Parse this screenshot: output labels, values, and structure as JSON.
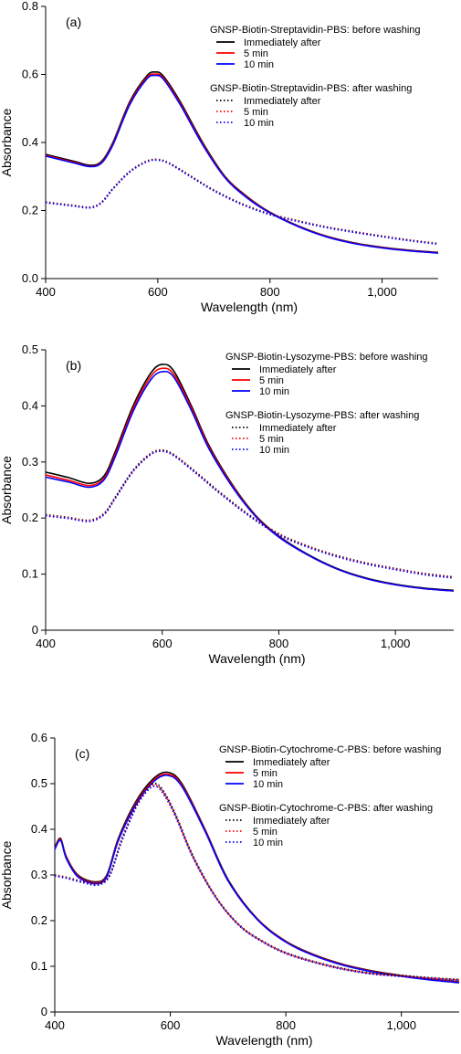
{
  "chart_data": [
    {
      "type": "line",
      "panel_label": "(a)",
      "xlabel": "Wavelength (nm)",
      "ylabel": "Absorbance",
      "xlim": [
        400,
        1100
      ],
      "ylim": [
        0,
        0.8
      ],
      "xticks": [
        400,
        600,
        800,
        1000
      ],
      "xtick_labels": [
        "400",
        "600",
        "800",
        "1,000"
      ],
      "yticks": [
        0,
        0.2,
        0.4,
        0.6,
        0.8
      ],
      "ytick_labels": [
        "0.0",
        "0.2",
        "0.4",
        "0.6",
        "0.8"
      ],
      "legend_groups": [
        {
          "title": "GNSP-Biotin-Streptavidin-PBS: before washing",
          "style": "solid"
        },
        {
          "title": "GNSP-Biotin-Streptavidin-PBS: after washing",
          "style": "dotted"
        }
      ],
      "series": [
        {
          "name": "Immediately after",
          "group": 0,
          "color": "#000000",
          "style": "solid",
          "x": [
            400,
            450,
            480,
            500,
            520,
            550,
            580,
            595,
            610,
            640,
            680,
            720,
            760,
            800,
            850,
            900,
            950,
            1000,
            1050,
            1100
          ],
          "y": [
            0.365,
            0.345,
            0.333,
            0.345,
            0.4,
            0.52,
            0.595,
            0.607,
            0.595,
            0.52,
            0.4,
            0.3,
            0.24,
            0.195,
            0.155,
            0.125,
            0.105,
            0.092,
            0.083,
            0.077
          ]
        },
        {
          "name": "5 min",
          "group": 0,
          "color": "#ff0000",
          "style": "solid",
          "x": [
            400,
            450,
            480,
            500,
            520,
            550,
            580,
            595,
            610,
            640,
            680,
            720,
            760,
            800,
            850,
            900,
            950,
            1000,
            1050,
            1100
          ],
          "y": [
            0.362,
            0.342,
            0.33,
            0.342,
            0.396,
            0.515,
            0.59,
            0.601,
            0.59,
            0.515,
            0.396,
            0.298,
            0.238,
            0.194,
            0.154,
            0.124,
            0.104,
            0.091,
            0.082,
            0.076
          ]
        },
        {
          "name": "10 min",
          "group": 0,
          "color": "#0000ff",
          "style": "solid",
          "x": [
            400,
            450,
            480,
            500,
            520,
            550,
            580,
            595,
            610,
            640,
            680,
            720,
            760,
            800,
            850,
            900,
            950,
            1000,
            1050,
            1100
          ],
          "y": [
            0.36,
            0.34,
            0.329,
            0.34,
            0.393,
            0.511,
            0.586,
            0.597,
            0.586,
            0.511,
            0.393,
            0.296,
            0.236,
            0.193,
            0.153,
            0.123,
            0.103,
            0.09,
            0.081,
            0.075
          ]
        },
        {
          "name": "Immediately after",
          "group": 1,
          "color": "#000000",
          "style": "dotted",
          "x": [
            400,
            450,
            480,
            500,
            520,
            550,
            580,
            600,
            620,
            660,
            700,
            750,
            800,
            850,
            900,
            950,
            1000,
            1050,
            1100
          ],
          "y": [
            0.225,
            0.215,
            0.21,
            0.225,
            0.265,
            0.315,
            0.345,
            0.35,
            0.34,
            0.3,
            0.26,
            0.22,
            0.19,
            0.17,
            0.152,
            0.138,
            0.125,
            0.113,
            0.103
          ]
        },
        {
          "name": "5 min",
          "group": 1,
          "color": "#ff0000",
          "style": "dotted",
          "x": [
            400,
            450,
            480,
            500,
            520,
            550,
            580,
            600,
            620,
            660,
            700,
            750,
            800,
            850,
            900,
            950,
            1000,
            1050,
            1100
          ],
          "y": [
            0.224,
            0.214,
            0.209,
            0.224,
            0.264,
            0.314,
            0.344,
            0.349,
            0.339,
            0.299,
            0.259,
            0.219,
            0.189,
            0.169,
            0.151,
            0.137,
            0.124,
            0.112,
            0.102
          ]
        },
        {
          "name": "10 min",
          "group": 1,
          "color": "#0000ff",
          "style": "dotted",
          "x": [
            400,
            450,
            480,
            500,
            520,
            550,
            580,
            600,
            620,
            660,
            700,
            750,
            800,
            850,
            900,
            950,
            1000,
            1050,
            1100
          ],
          "y": [
            0.223,
            0.213,
            0.208,
            0.223,
            0.263,
            0.313,
            0.343,
            0.348,
            0.338,
            0.298,
            0.258,
            0.218,
            0.188,
            0.168,
            0.15,
            0.136,
            0.123,
            0.111,
            0.101
          ]
        }
      ]
    },
    {
      "type": "line",
      "panel_label": "(b)",
      "xlabel": "Wavelength (nm)",
      "ylabel": "Absorbance",
      "xlim": [
        400,
        1100
      ],
      "ylim": [
        0,
        0.5
      ],
      "xticks": [
        400,
        600,
        800,
        1000
      ],
      "xtick_labels": [
        "400",
        "600",
        "800",
        "1,000"
      ],
      "yticks": [
        0,
        0.1,
        0.2,
        0.3,
        0.4,
        0.5
      ],
      "ytick_labels": [
        "0",
        "0.1",
        "0.2",
        "0.3",
        "0.4",
        "0.5"
      ],
      "legend_groups": [
        {
          "title": "GNSP-Biotin-Lysozyme-PBS: before washing",
          "style": "solid"
        },
        {
          "title": "GNSP-Biotin-Lysozyme-PBS: after washing",
          "style": "dotted"
        }
      ],
      "series": [
        {
          "name": "Immediately after",
          "group": 0,
          "color": "#000000",
          "style": "solid",
          "x": [
            400,
            440,
            475,
            500,
            520,
            550,
            580,
            600,
            620,
            650,
            680,
            720,
            760,
            800,
            850,
            900,
            950,
            1000,
            1050,
            1100
          ],
          "y": [
            0.282,
            0.272,
            0.262,
            0.275,
            0.32,
            0.4,
            0.458,
            0.474,
            0.462,
            0.4,
            0.33,
            0.26,
            0.205,
            0.168,
            0.135,
            0.11,
            0.093,
            0.082,
            0.075,
            0.071
          ]
        },
        {
          "name": "5 min",
          "group": 0,
          "color": "#ff0000",
          "style": "solid",
          "x": [
            400,
            440,
            475,
            500,
            520,
            550,
            580,
            600,
            620,
            650,
            680,
            720,
            760,
            800,
            850,
            900,
            950,
            1000,
            1050,
            1100
          ],
          "y": [
            0.277,
            0.267,
            0.258,
            0.271,
            0.315,
            0.395,
            0.452,
            0.467,
            0.456,
            0.396,
            0.327,
            0.258,
            0.204,
            0.167,
            0.134,
            0.109,
            0.092,
            0.081,
            0.074,
            0.07
          ]
        },
        {
          "name": "10 min",
          "group": 0,
          "color": "#0000ff",
          "style": "solid",
          "x": [
            400,
            440,
            475,
            500,
            520,
            550,
            580,
            600,
            620,
            650,
            680,
            720,
            760,
            800,
            850,
            900,
            950,
            1000,
            1050,
            1100
          ],
          "y": [
            0.273,
            0.264,
            0.255,
            0.268,
            0.311,
            0.39,
            0.446,
            0.461,
            0.451,
            0.392,
            0.324,
            0.256,
            0.203,
            0.166,
            0.134,
            0.109,
            0.092,
            0.081,
            0.074,
            0.07
          ]
        },
        {
          "name": "Immediately after",
          "group": 1,
          "color": "#000000",
          "style": "dotted",
          "x": [
            400,
            440,
            475,
            500,
            520,
            550,
            580,
            600,
            620,
            660,
            700,
            750,
            800,
            850,
            900,
            950,
            1000,
            1050,
            1100
          ],
          "y": [
            0.206,
            0.201,
            0.196,
            0.208,
            0.238,
            0.285,
            0.315,
            0.321,
            0.313,
            0.28,
            0.245,
            0.205,
            0.172,
            0.15,
            0.133,
            0.12,
            0.11,
            0.101,
            0.095
          ]
        },
        {
          "name": "5 min",
          "group": 1,
          "color": "#ff0000",
          "style": "dotted",
          "x": [
            400,
            440,
            475,
            500,
            520,
            550,
            580,
            600,
            620,
            660,
            700,
            750,
            800,
            850,
            900,
            950,
            1000,
            1050,
            1100
          ],
          "y": [
            0.205,
            0.2,
            0.195,
            0.207,
            0.237,
            0.284,
            0.314,
            0.32,
            0.312,
            0.279,
            0.244,
            0.204,
            0.171,
            0.149,
            0.132,
            0.119,
            0.109,
            0.1,
            0.094
          ]
        },
        {
          "name": "10 min",
          "group": 1,
          "color": "#0000ff",
          "style": "dotted",
          "x": [
            400,
            440,
            475,
            500,
            520,
            550,
            580,
            600,
            620,
            660,
            700,
            750,
            800,
            850,
            900,
            950,
            1000,
            1050,
            1100
          ],
          "y": [
            0.204,
            0.199,
            0.194,
            0.206,
            0.236,
            0.283,
            0.313,
            0.319,
            0.311,
            0.278,
            0.243,
            0.203,
            0.17,
            0.148,
            0.131,
            0.118,
            0.108,
            0.099,
            0.093
          ]
        }
      ]
    },
    {
      "type": "line",
      "panel_label": "(c)",
      "xlabel": "Wavelength (nm)",
      "ylabel": "Absorbance",
      "xlim": [
        400,
        1100
      ],
      "ylim": [
        0,
        0.6
      ],
      "xticks": [
        400,
        600,
        800,
        1000
      ],
      "xtick_labels": [
        "400",
        "600",
        "800",
        "1,000"
      ],
      "yticks": [
        0,
        0.1,
        0.2,
        0.3,
        0.4,
        0.5,
        0.6
      ],
      "ytick_labels": [
        "0",
        "0.1",
        "0.2",
        "0.3",
        "0.4",
        "0.5",
        "0.6"
      ],
      "legend_groups": [
        {
          "title": "GNSP-Biotin-Cytochrome-C-PBS: before washing",
          "style": "solid"
        },
        {
          "title": "GNSP-Biotin-Cytochrome-C-PBS: after washing",
          "style": "dotted"
        }
      ],
      "series": [
        {
          "name": "Immediately after",
          "group": 0,
          "color": "#000000",
          "style": "solid",
          "x": [
            400,
            410,
            420,
            440,
            470,
            490,
            510,
            540,
            570,
            595,
            620,
            660,
            700,
            750,
            800,
            850,
            900,
            950,
            1000,
            1050,
            1100
          ],
          "y": [
            0.36,
            0.38,
            0.34,
            0.3,
            0.285,
            0.3,
            0.38,
            0.46,
            0.51,
            0.525,
            0.5,
            0.4,
            0.29,
            0.205,
            0.155,
            0.125,
            0.104,
            0.09,
            0.08,
            0.072,
            0.066
          ]
        },
        {
          "name": "5 min",
          "group": 0,
          "color": "#ff0000",
          "style": "solid",
          "x": [
            400,
            410,
            420,
            440,
            470,
            490,
            510,
            540,
            570,
            595,
            620,
            660,
            700,
            750,
            800,
            850,
            900,
            950,
            1000,
            1050,
            1100
          ],
          "y": [
            0.358,
            0.378,
            0.338,
            0.298,
            0.283,
            0.298,
            0.377,
            0.456,
            0.506,
            0.521,
            0.497,
            0.398,
            0.288,
            0.204,
            0.154,
            0.124,
            0.103,
            0.089,
            0.079,
            0.071,
            0.065
          ]
        },
        {
          "name": "10 min",
          "group": 0,
          "color": "#0000ff",
          "style": "solid",
          "x": [
            400,
            410,
            420,
            440,
            470,
            490,
            510,
            540,
            570,
            595,
            620,
            660,
            700,
            750,
            800,
            850,
            900,
            950,
            1000,
            1050,
            1100
          ],
          "y": [
            0.356,
            0.376,
            0.336,
            0.296,
            0.281,
            0.296,
            0.375,
            0.453,
            0.503,
            0.518,
            0.494,
            0.396,
            0.287,
            0.203,
            0.153,
            0.123,
            0.102,
            0.088,
            0.078,
            0.07,
            0.064
          ]
        },
        {
          "name": "Immediately after",
          "group": 1,
          "color": "#000000",
          "style": "dotted",
          "x": [
            400,
            420,
            450,
            475,
            495,
            515,
            540,
            560,
            575,
            590,
            610,
            640,
            680,
            720,
            760,
            800,
            850,
            900,
            950,
            1000,
            1050,
            1100
          ],
          "y": [
            0.3,
            0.295,
            0.285,
            0.28,
            0.3,
            0.375,
            0.45,
            0.49,
            0.5,
            0.48,
            0.43,
            0.34,
            0.25,
            0.19,
            0.155,
            0.13,
            0.11,
            0.095,
            0.085,
            0.08,
            0.075,
            0.071
          ]
        },
        {
          "name": "5 min",
          "group": 1,
          "color": "#ff0000",
          "style": "dotted",
          "x": [
            400,
            420,
            450,
            475,
            495,
            515,
            540,
            560,
            575,
            590,
            610,
            640,
            680,
            720,
            760,
            800,
            850,
            900,
            950,
            1000,
            1050,
            1100
          ],
          "y": [
            0.299,
            0.294,
            0.284,
            0.279,
            0.299,
            0.373,
            0.448,
            0.487,
            0.497,
            0.477,
            0.428,
            0.338,
            0.249,
            0.189,
            0.154,
            0.129,
            0.109,
            0.094,
            0.084,
            0.079,
            0.074,
            0.07
          ]
        },
        {
          "name": "10 min",
          "group": 1,
          "color": "#0000ff",
          "style": "dotted",
          "x": [
            400,
            420,
            450,
            475,
            495,
            515,
            540,
            560,
            575,
            590,
            610,
            640,
            680,
            720,
            760,
            800,
            850,
            900,
            950,
            1000,
            1050,
            1100
          ],
          "y": [
            0.298,
            0.293,
            0.283,
            0.278,
            0.298,
            0.371,
            0.446,
            0.484,
            0.494,
            0.474,
            0.425,
            0.336,
            0.248,
            0.188,
            0.153,
            0.128,
            0.108,
            0.093,
            0.083,
            0.078,
            0.073,
            0.069
          ]
        }
      ]
    }
  ]
}
